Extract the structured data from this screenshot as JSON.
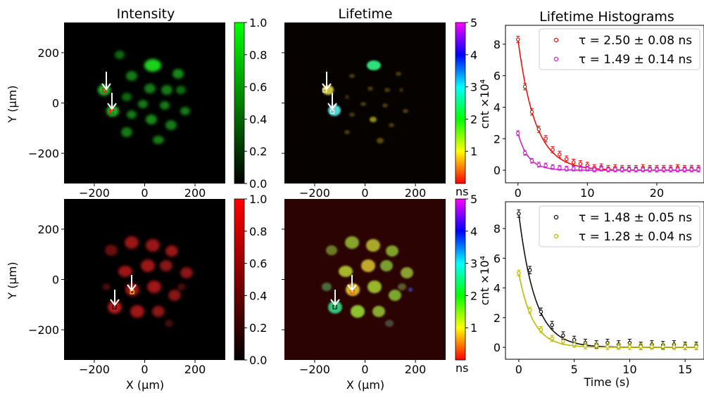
{
  "chart_data": [
    {
      "type": "heatmap",
      "panel": "top-left",
      "title": "Intensity",
      "ylabel": "Y (μm)",
      "xticks": [
        -200,
        0,
        200
      ],
      "yticks": [
        -200,
        0,
        200
      ],
      "xlim": [
        -320,
        320
      ],
      "ylim": [
        -320,
        320
      ],
      "colorbar": {
        "colormap": "black-to-green",
        "min": 0.0,
        "max": 1.0,
        "ticks": [
          "0.0",
          "0.2",
          "0.4",
          "0.6",
          "0.8",
          "1.0"
        ],
        "unit": ""
      },
      "markers": [
        {
          "x": -160,
          "y": 50,
          "color": "#ff0000"
        },
        {
          "x": -130,
          "y": -35,
          "color": "#ff0000"
        }
      ]
    },
    {
      "type": "heatmap",
      "panel": "top-middle",
      "title": "Lifetime",
      "xticks": [
        -200,
        0,
        200
      ],
      "xlim": [
        -320,
        320
      ],
      "ylim": [
        -320,
        320
      ],
      "colorbar": {
        "colormap": "rainbow",
        "min": 0,
        "max": 5,
        "ticks": [
          "1",
          "2",
          "3",
          "4",
          "5"
        ],
        "unit": "ns"
      },
      "markers": [
        {
          "x": -160,
          "y": 50,
          "color": "#ffffff"
        },
        {
          "x": -130,
          "y": -35,
          "color": "#ffffff"
        }
      ]
    },
    {
      "type": "scatter",
      "panel": "top-right",
      "title": "Lifetime Histograms",
      "ylabel": "cnt ×10⁴",
      "xticks": [
        0,
        10,
        20
      ],
      "yticks": [
        0,
        2,
        4,
        6,
        8
      ],
      "xlim": [
        -1.8,
        26.8
      ],
      "ylim": [
        -0.8,
        9.2
      ],
      "series": [
        {
          "name": "τ = 2.50 ± 0.08 ns",
          "color": "#ee1111",
          "x": [
            0,
            1,
            2,
            3,
            4,
            5,
            6,
            7,
            8,
            9,
            10,
            11,
            12,
            13,
            14,
            15,
            16,
            17,
            18,
            19,
            20,
            21,
            22,
            23,
            24,
            25,
            26
          ],
          "y": [
            8.3,
            5.3,
            3.7,
            2.6,
            2.0,
            1.3,
            1.0,
            0.7,
            0.5,
            0.4,
            0.3,
            0.15,
            0.2,
            0.1,
            0.15,
            0.1,
            0.1,
            0.1,
            0.15,
            0.1,
            0.1,
            0.1,
            0.1,
            0.15,
            0.1,
            0.1,
            0.1
          ],
          "err": 0.2,
          "fit_amplitude": 8.3,
          "fit_tau": 2.5
        },
        {
          "name": "τ = 1.49 ± 0.14 ns",
          "color": "#cc22cc",
          "x": [
            0,
            1,
            2,
            3,
            4,
            5,
            6,
            7,
            8,
            9,
            10,
            11,
            12,
            13,
            14,
            15,
            16,
            17,
            18,
            19,
            20,
            21,
            22,
            23,
            24,
            25,
            26
          ],
          "y": [
            2.35,
            1.1,
            0.6,
            0.35,
            0.3,
            0.2,
            0.15,
            0.1,
            0.1,
            0.1,
            0.1,
            0.05,
            0.1,
            0.05,
            0.05,
            0.05,
            0.05,
            0.05,
            0.05,
            0.05,
            0.05,
            0.05,
            0.05,
            0.05,
            0.05,
            0.05,
            0.05
          ],
          "err": 0.15,
          "fit_amplitude": 2.35,
          "fit_tau": 1.49
        }
      ],
      "legend": "top-right"
    },
    {
      "type": "heatmap",
      "panel": "bottom-left",
      "xlabel": "X (μm)",
      "ylabel": "Y (μm)",
      "xticks": [
        -200,
        0,
        200
      ],
      "yticks": [
        -200,
        0,
        200
      ],
      "xlim": [
        -320,
        320
      ],
      "ylim": [
        -320,
        320
      ],
      "colorbar": {
        "colormap": "black-to-red",
        "min": 0.0,
        "max": 1.0,
        "ticks": [
          "0.0",
          "0.2",
          "0.4",
          "0.6",
          "0.8",
          "1.0"
        ],
        "unit": ""
      },
      "markers": [
        {
          "x": -50,
          "y": -50,
          "color": "#ffee00"
        },
        {
          "x": -120,
          "y": -110,
          "color": "#000000"
        }
      ]
    },
    {
      "type": "heatmap",
      "panel": "bottom-middle",
      "xlabel": "X (μm)",
      "xticks": [
        -200,
        0,
        200
      ],
      "xlim": [
        -320,
        320
      ],
      "ylim": [
        -320,
        320
      ],
      "colorbar": {
        "colormap": "rainbow",
        "min": 0,
        "max": 5,
        "ticks": [
          "1",
          "2",
          "3",
          "4",
          "5"
        ],
        "unit": "ns"
      },
      "markers": [
        {
          "x": -50,
          "y": -50,
          "color": "#ff4400"
        },
        {
          "x": -120,
          "y": -110,
          "color": "#000000"
        }
      ]
    },
    {
      "type": "scatter",
      "panel": "bottom-right",
      "xlabel": "Time (s)",
      "ylabel": "cnt ×10⁴",
      "xticks": [
        0,
        5,
        10,
        15
      ],
      "yticks": [
        0,
        2,
        4,
        6,
        8
      ],
      "xlim": [
        -1.2,
        16.7
      ],
      "ylim": [
        -0.8,
        9.8
      ],
      "series": [
        {
          "name": "τ = 1.48 ± 0.05 ns",
          "color": "#111111",
          "x": [
            0,
            1,
            2,
            3,
            4,
            5,
            6,
            7,
            8,
            9,
            10,
            11,
            12,
            13,
            14,
            15,
            16
          ],
          "y": [
            9.0,
            5.2,
            2.4,
            1.5,
            0.8,
            0.5,
            0.3,
            0.2,
            0.3,
            0.2,
            0.3,
            0.1,
            0.2,
            0.15,
            0.2,
            0.1,
            0.1
          ],
          "err": 0.25,
          "fit_amplitude": 9.0,
          "fit_tau": 1.48
        },
        {
          "name": "τ = 1.28 ± 0.04 ns",
          "color": "#bbbb00",
          "x": [
            0,
            1,
            2,
            3,
            4,
            5,
            6,
            7,
            8,
            9,
            10,
            11,
            12,
            13,
            14,
            15,
            16
          ],
          "y": [
            5.0,
            2.5,
            1.2,
            0.6,
            0.4,
            0.2,
            0.1,
            0.1,
            0.05,
            0.05,
            0.05,
            0.05,
            0.05,
            0.05,
            0.05,
            0.05,
            0.05
          ],
          "err": 0.2,
          "fit_amplitude": 5.0,
          "fit_tau": 1.28
        }
      ],
      "legend": "top-right"
    }
  ]
}
